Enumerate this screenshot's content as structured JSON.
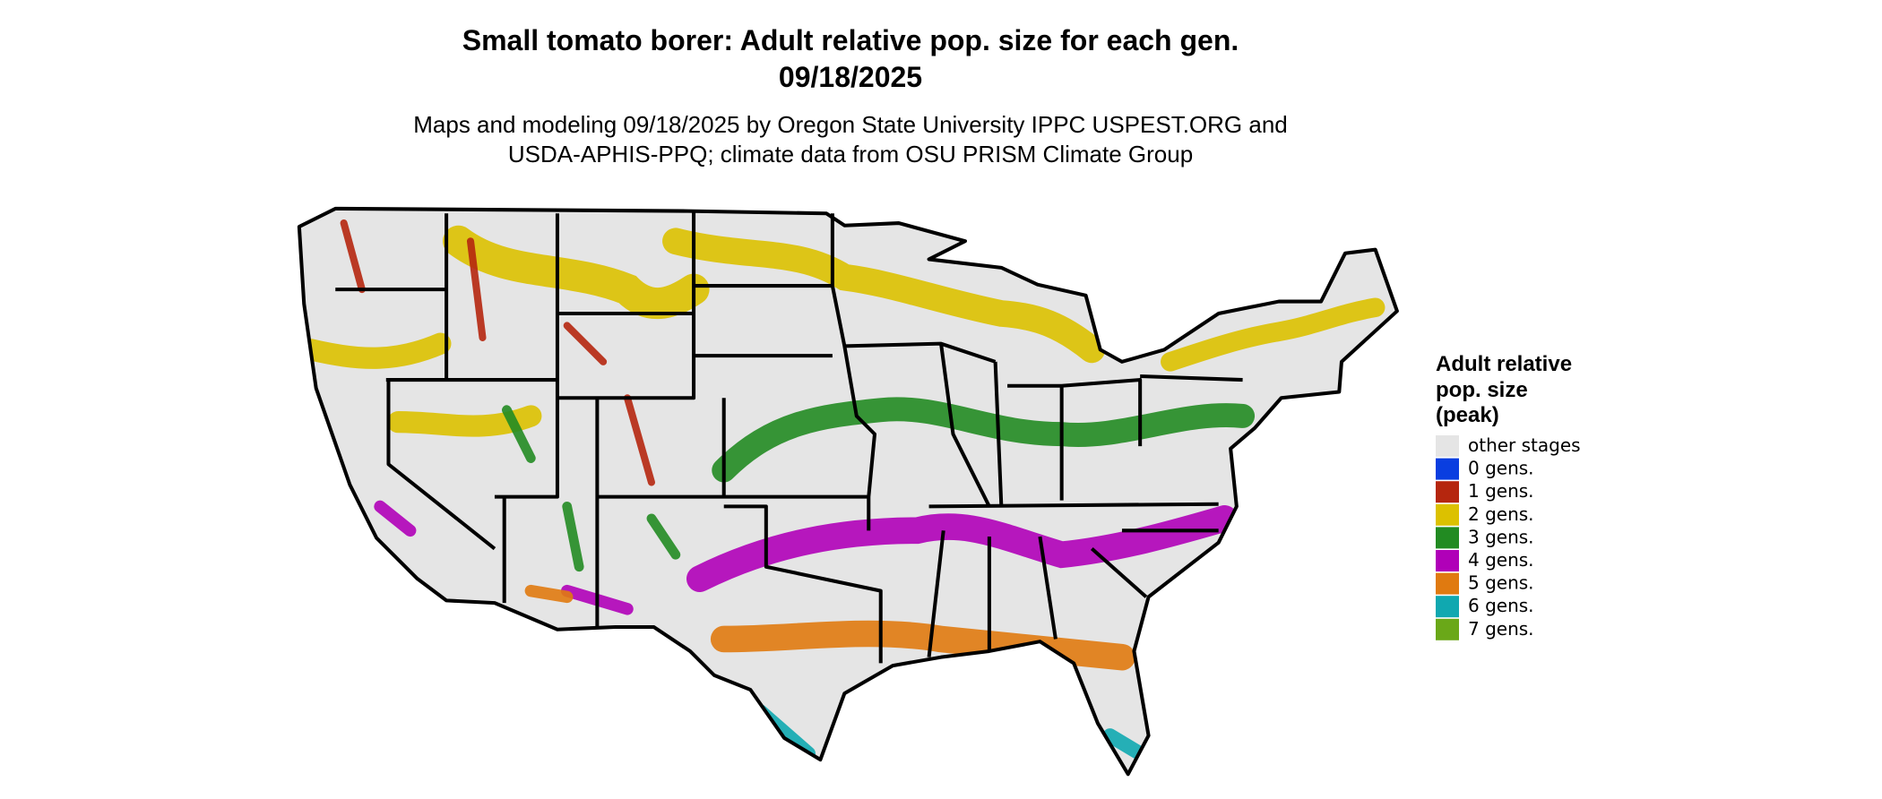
{
  "title": [
    "Small tomato borer: Adult relative pop. size for each gen.",
    "09/18/2025"
  ],
  "subtitle": [
    "Maps and modeling 09/18/2025 by Oregon State University IPPC USPEST.ORG and",
    "USDA-APHIS-PPQ; climate data from OSU PRISM Climate Group"
  ],
  "legend": {
    "title": [
      "Adult relative",
      "pop. size",
      "(peak)"
    ],
    "items": [
      {
        "label": "other stages",
        "color": "#e5e5e5"
      },
      {
        "label": "0 gens.",
        "color": "#0a3ee0"
      },
      {
        "label": "1 gens.",
        "color": "#b5260e"
      },
      {
        "label": "2 gens.",
        "color": "#dcc100"
      },
      {
        "label": "3 gens.",
        "color": "#228b22"
      },
      {
        "label": "4 gens.",
        "color": "#b000b8"
      },
      {
        "label": "5 gens.",
        "color": "#e07a10"
      },
      {
        "label": "6 gens.",
        "color": "#10a8b0"
      },
      {
        "label": "7 gens.",
        "color": "#6aa818"
      }
    ]
  }
}
